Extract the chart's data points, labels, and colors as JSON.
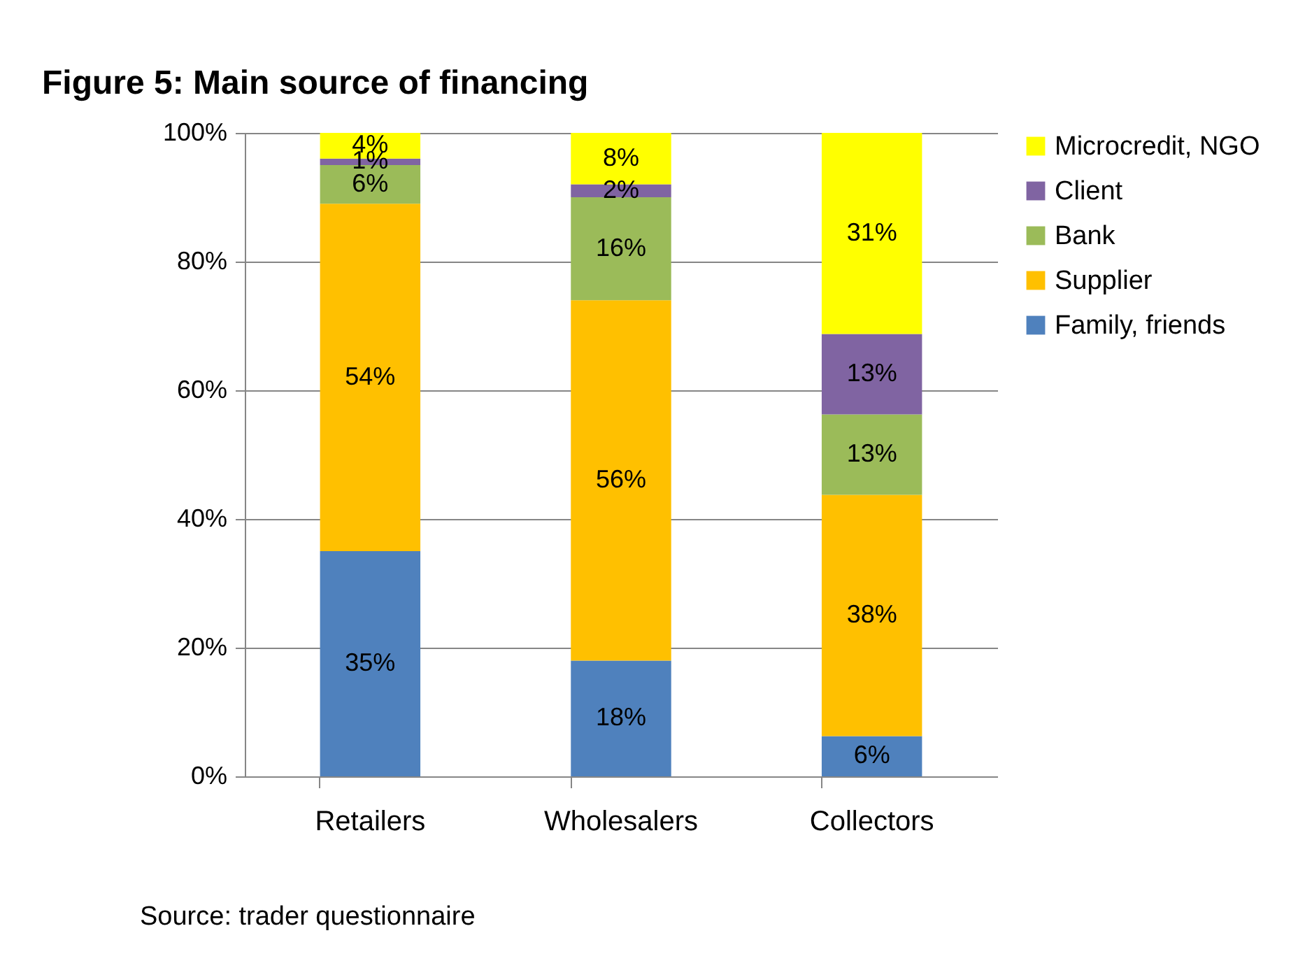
{
  "chart_data": {
    "type": "bar",
    "title": "Figure 5:  Main source of financing",
    "categories": [
      "Retailers",
      "Wholesalers",
      "Collectors"
    ],
    "stacked": true,
    "series": [
      {
        "name": "Family, friends",
        "color": "#4f81bd",
        "values": [
          35,
          18,
          6.25
        ],
        "value_labels": [
          "35%",
          "18%",
          "6%"
        ]
      },
      {
        "name": "Supplier",
        "color": "#ffc000",
        "values": [
          54,
          56,
          37.5
        ],
        "value_labels": [
          "54%",
          "56%",
          "38%"
        ]
      },
      {
        "name": "Bank",
        "color": "#9bbb59",
        "values": [
          6,
          16,
          12.5
        ],
        "value_labels": [
          "6%",
          "16%",
          "13%"
        ]
      },
      {
        "name": "Client",
        "color": "#8064a2",
        "values": [
          1,
          2,
          12.5
        ],
        "value_labels": [
          "1%",
          "2%",
          "13%"
        ]
      },
      {
        "name": "Microcredit, NGO",
        "color": "#ffff00",
        "values": [
          4,
          8,
          31.25
        ],
        "value_labels": [
          "4%",
          "8%",
          "31%"
        ]
      }
    ],
    "ylim": [
      0,
      100
    ],
    "yticks": [
      {
        "value": 0,
        "label": "0%"
      },
      {
        "value": 20,
        "label": "20%"
      },
      {
        "value": 40,
        "label": "40%"
      },
      {
        "value": 60,
        "label": "60%"
      },
      {
        "value": 80,
        "label": "80%"
      },
      {
        "value": 100,
        "label": "100%"
      }
    ],
    "grid": "y",
    "legend": "right",
    "annotations": [
      "Source: trader questionnaire"
    ]
  }
}
